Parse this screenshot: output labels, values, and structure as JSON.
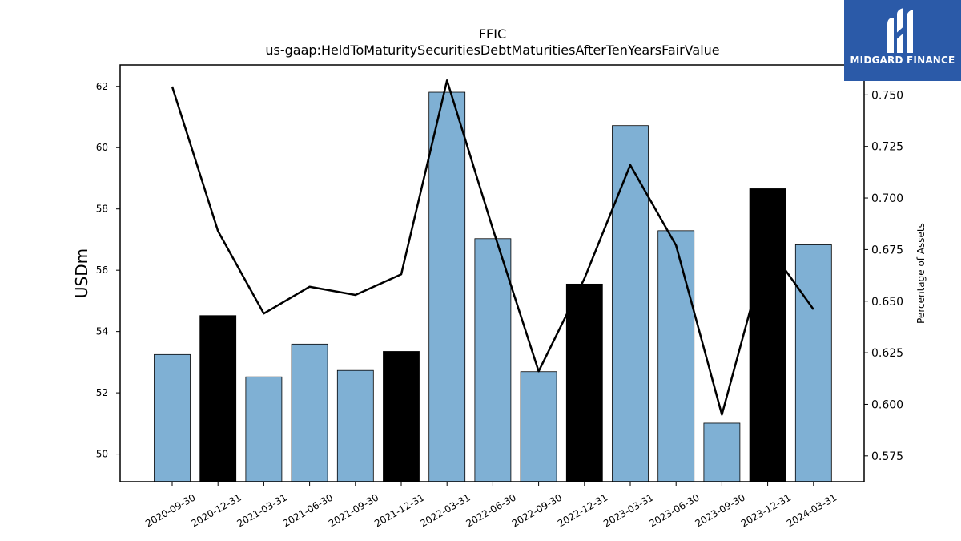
{
  "logo": {
    "text": "MIDGARD FINANCE"
  },
  "chart_data": {
    "type": "bar",
    "title": "FFIC",
    "subtitle": "us-gaap:HeldToMaturitySecuritiesDebtMaturitiesAfterTenYearsFairValue",
    "ylabel": "USDm",
    "y2label": "Percentage of Assets",
    "ylim": [
      49.1,
      62.7
    ],
    "y2lim": [
      0.5625,
      0.7645
    ],
    "yticks": [
      "50",
      "52",
      "54",
      "56",
      "58",
      "60",
      "62"
    ],
    "y2ticks": [
      "0.575",
      "0.600",
      "0.625",
      "0.650",
      "0.675",
      "0.700",
      "0.725",
      "0.750"
    ],
    "categories": [
      "2020-09-30",
      "2020-12-31",
      "2021-03-31",
      "2021-06-30",
      "2021-09-30",
      "2021-12-31",
      "2022-03-31",
      "2022-06-30",
      "2022-09-30",
      "2022-12-31",
      "2023-03-31",
      "2023-06-30",
      "2023-09-30",
      "2023-12-31",
      "2024-03-31"
    ],
    "bar_values": [
      53.25,
      54.52,
      52.52,
      53.59,
      52.73,
      53.35,
      61.81,
      57.03,
      52.69,
      55.55,
      60.72,
      57.29,
      51.01,
      58.66,
      56.83
    ],
    "bar_colors": [
      "#7fb0d4",
      "#000000",
      "#7fb0d4",
      "#7fb0d4",
      "#7fb0d4",
      "#000000",
      "#7fb0d4",
      "#7fb0d4",
      "#7fb0d4",
      "#000000",
      "#7fb0d4",
      "#7fb0d4",
      "#7fb0d4",
      "#000000",
      "#7fb0d4"
    ],
    "line_values": [
      0.754,
      0.684,
      0.644,
      0.657,
      0.653,
      0.663,
      0.757,
      0.685,
      0.616,
      0.661,
      0.716,
      0.677,
      0.595,
      0.677,
      0.646
    ],
    "line_color": "#000000",
    "grid": false
  }
}
